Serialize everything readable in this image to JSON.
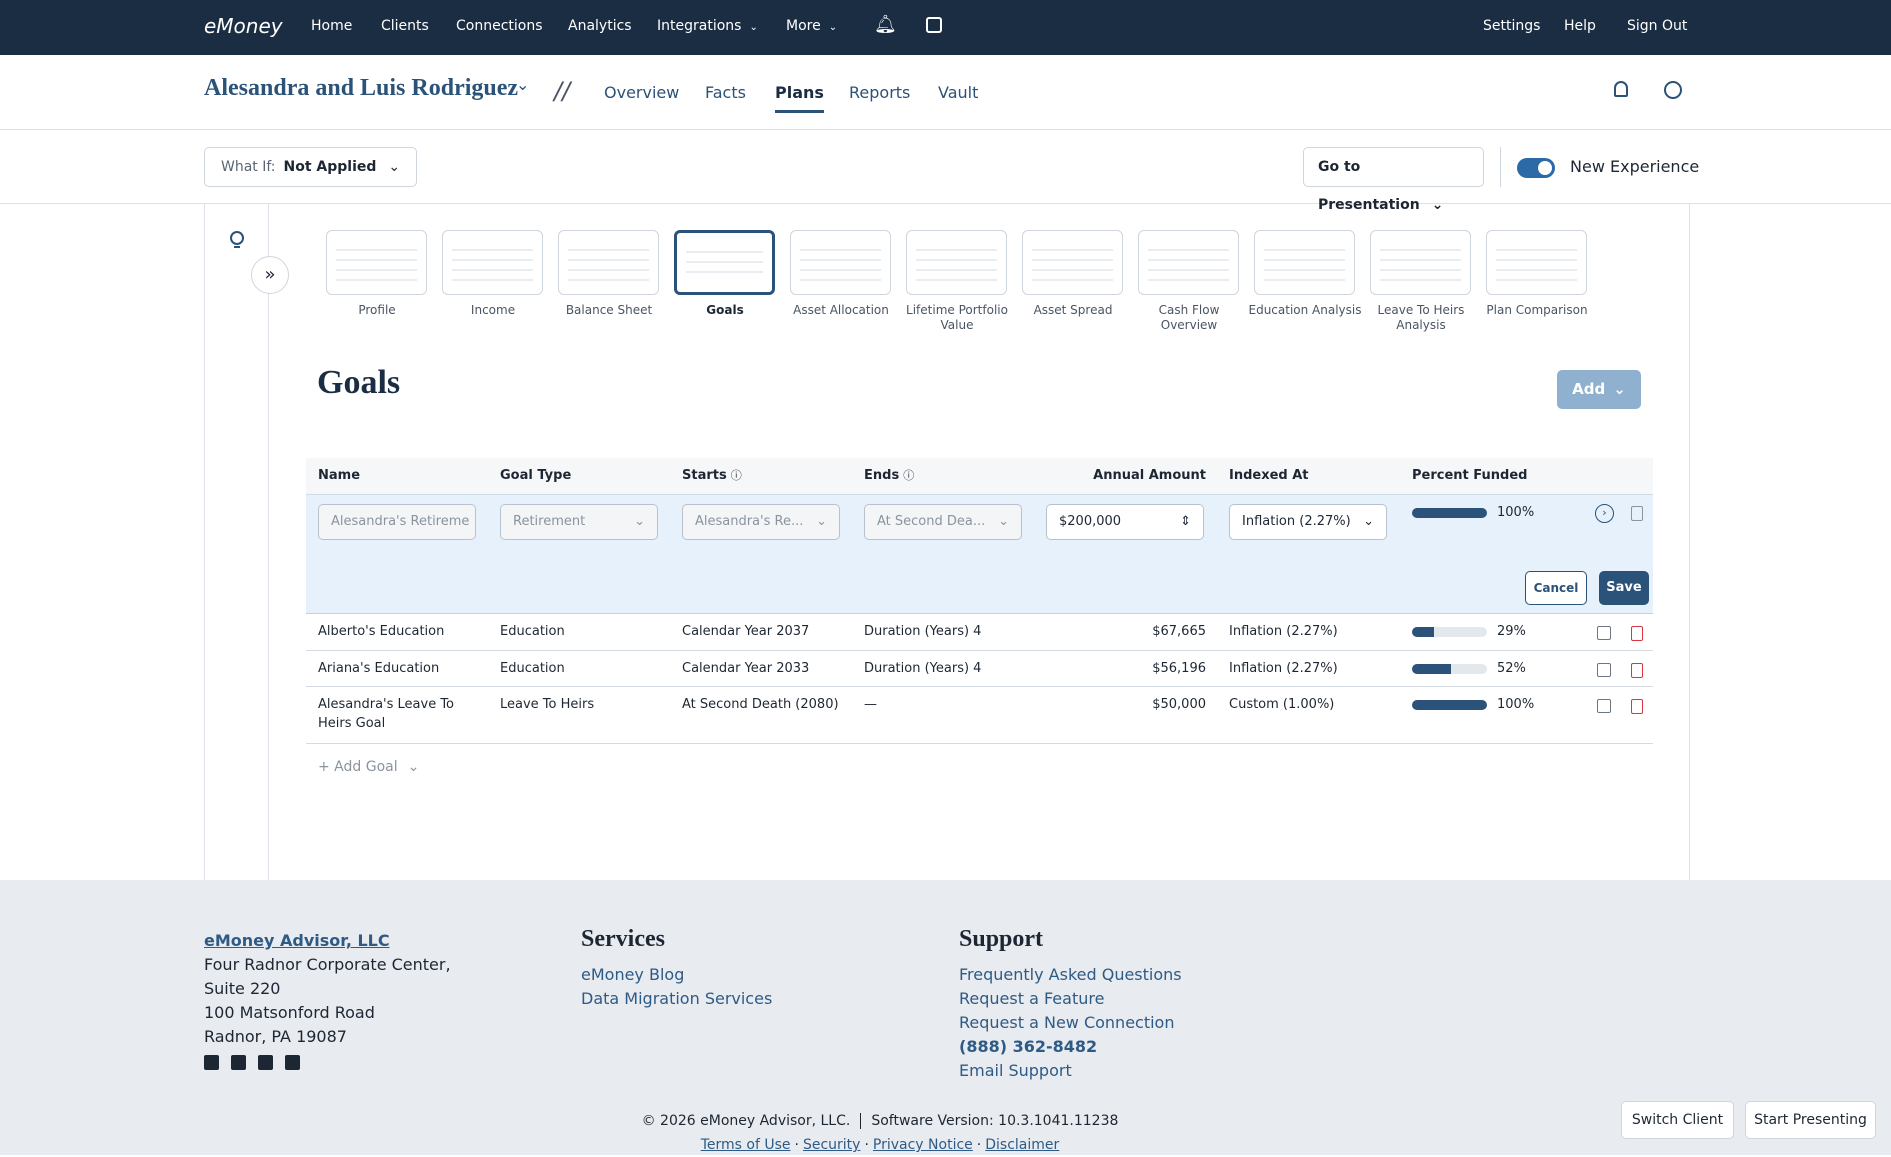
{
  "nav": {
    "brand": "eMoney",
    "items": [
      "Home",
      "Clients",
      "Connections",
      "Analytics",
      "Integrations",
      "More"
    ],
    "right": [
      "Settings",
      "Help",
      "Sign Out"
    ]
  },
  "client": {
    "name": "Alesandra and Luis Rodriguez",
    "separator": "//",
    "tabs": [
      "Overview",
      "Facts",
      "Plans",
      "Reports",
      "Vault"
    ],
    "active_tab": "Plans"
  },
  "toolbar": {
    "what_if_label": "What If:",
    "what_if_value": "Not Applied",
    "presentation": "Go to Presentation",
    "toggle_label": "New Experience"
  },
  "reports": [
    "Profile",
    "Income",
    "Balance Sheet",
    "Goals",
    "Asset Allocation",
    "Lifetime Portfolio Value",
    "Asset Spread",
    "Cash Flow Overview",
    "Education Analysis",
    "Leave To Heirs Analysis",
    "Plan Comparison"
  ],
  "active_report": "Goals",
  "page": {
    "title": "Goals",
    "add": "Add"
  },
  "table": {
    "columns": [
      "Name",
      "Goal Type",
      "Starts",
      "Ends",
      "Annual Amount",
      "Indexed At",
      "Percent Funded"
    ],
    "edit_row": {
      "name": "Alesandra's Retireme",
      "goal_type": "Retirement",
      "starts": "Alesandra's Re...",
      "ends": "At Second Dea...",
      "amount": "$200,000",
      "indexed": "Inflation (2.27%)",
      "percent": 100,
      "percent_label": "100%",
      "cancel": "Cancel",
      "save": "Save"
    },
    "rows": [
      {
        "name": "Alberto's Education",
        "goal_type": "Education",
        "starts": "Calendar Year 2037",
        "ends": "Duration (Years) 4",
        "amount": "$67,665",
        "indexed": "Inflation (2.27%)",
        "percent": 29,
        "percent_label": "29%"
      },
      {
        "name": "Ariana's Education",
        "goal_type": "Education",
        "starts": "Calendar Year 2033",
        "ends": "Duration (Years) 4",
        "amount": "$56,196",
        "indexed": "Inflation (2.27%)",
        "percent": 52,
        "percent_label": "52%"
      },
      {
        "name": "Alesandra's Leave To Heirs Goal",
        "goal_type": "Leave To Heirs",
        "starts": "At Second Death (2080)",
        "ends": "—",
        "amount": "$50,000",
        "indexed": "Custom (1.00%)",
        "percent": 100,
        "percent_label": "100%"
      }
    ],
    "add_goal": "+ Add Goal"
  },
  "footer": {
    "company": "eMoney Advisor, LLC",
    "address": [
      "Four Radnor Corporate Center,",
      "Suite 220",
      "100 Matsonford Road",
      "Radnor, PA 19087"
    ],
    "services_title": "Services",
    "services": [
      "eMoney Blog",
      "Data Migration Services"
    ],
    "support_title": "Support",
    "support": [
      "Frequently Asked Questions",
      "Request a Feature",
      "Request a New Connection"
    ],
    "phone": "(888) 362-8482",
    "email": "Email Support",
    "copyright": "© 2026 eMoney Advisor, LLC.",
    "version": "Software Version: 10.3.1041.11238",
    "legal": [
      "Terms of Use",
      "Security",
      "Privacy Notice",
      "Disclaimer"
    ],
    "buttons": [
      "Switch Client",
      "Start Presenting"
    ]
  }
}
